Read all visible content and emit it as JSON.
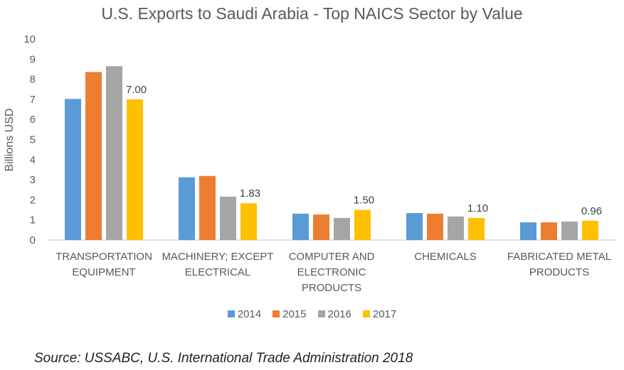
{
  "chart_data": {
    "type": "bar",
    "title": "U.S. Exports to Saudi Arabia - Top NAICS Sector by Value",
    "xlabel": "",
    "ylabel": "Billions USD",
    "ylim": [
      0,
      10
    ],
    "yticks": [
      0,
      1,
      2,
      3,
      4,
      5,
      6,
      7,
      8,
      9,
      10
    ],
    "grid": false,
    "legend_position": "bottom",
    "categories": [
      [
        "TRANSPORTATION",
        "EQUIPMENT"
      ],
      [
        "MACHINERY; EXCEPT",
        "ELECTRICAL"
      ],
      [
        "COMPUTER AND",
        "ELECTRONIC",
        "PRODUCTS"
      ],
      [
        "CHEMICALS"
      ],
      [
        "FABRICATED METAL",
        "PRODUCTS"
      ]
    ],
    "series": [
      {
        "name": "2014",
        "color": "#5B9BD5",
        "values": [
          7.02,
          3.12,
          1.31,
          1.34,
          0.88
        ]
      },
      {
        "name": "2015",
        "color": "#ED7D31",
        "values": [
          8.36,
          3.19,
          1.27,
          1.31,
          0.88
        ]
      },
      {
        "name": "2016",
        "color": "#A5A5A5",
        "values": [
          8.65,
          2.16,
          1.1,
          1.17,
          0.92
        ]
      },
      {
        "name": "2017",
        "color": "#FFC000",
        "values": [
          7.0,
          1.83,
          1.5,
          1.1,
          0.96
        ]
      }
    ],
    "data_labels": {
      "series": "2017",
      "labels": [
        "7.00",
        "1.83",
        "1.50",
        "1.10",
        "0.96"
      ]
    }
  },
  "source": "Source: USSABC, U.S. International Trade Administration 2018"
}
